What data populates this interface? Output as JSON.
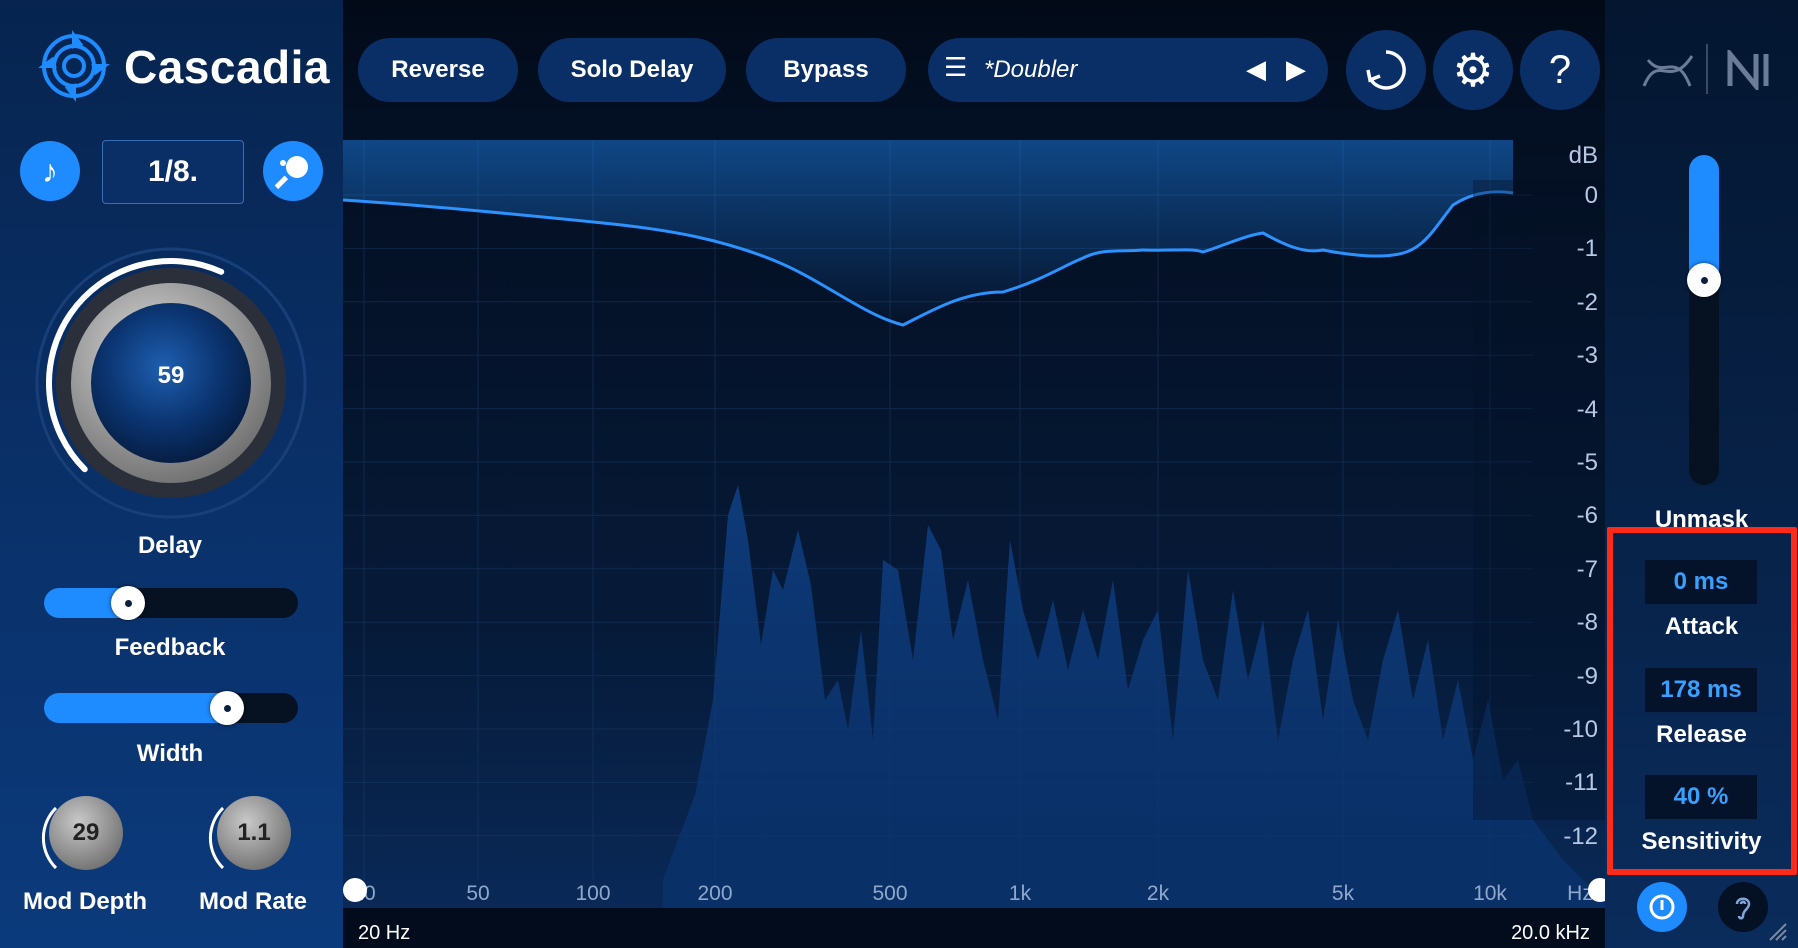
{
  "app": {
    "name": "Cascadia"
  },
  "toolbar": {
    "reverse_label": "Reverse",
    "solo_delay_label": "Solo Delay",
    "bypass_label": "Bypass",
    "preset_name": "*Doubler"
  },
  "delay": {
    "sync_value": "1/8.",
    "knob_value": "59",
    "label": "Delay",
    "arc_level": 0.59
  },
  "feedback": {
    "label": "Feedback",
    "level": 0.33
  },
  "width": {
    "label": "Width",
    "level": 0.72
  },
  "mod_depth": {
    "label": "Mod Depth",
    "value": "29"
  },
  "mod_rate": {
    "label": "Mod Rate",
    "value": "1.1"
  },
  "db_axis": {
    "unit": "dB",
    "ticks": [
      "0",
      "-1",
      "-2",
      "-3",
      "-4",
      "-5",
      "-6",
      "-7",
      "-8",
      "-9",
      "-10",
      "-11",
      "-12"
    ]
  },
  "freq_axis": {
    "ticks": [
      "20",
      "50",
      "100",
      "200",
      "500",
      "1k",
      "2k",
      "5k",
      "10k",
      "Hz"
    ]
  },
  "range": {
    "min_label": "20 Hz",
    "max_label": "20.0 kHz"
  },
  "unmask": {
    "label": "Unmask",
    "level": 0.62
  },
  "attack": {
    "value": "0 ms",
    "label": "Attack"
  },
  "release": {
    "value": "178 ms",
    "label": "Release"
  },
  "sensitivity": {
    "value": "40 %",
    "label": "Sensitivity"
  },
  "colors": {
    "accent": "#1e8bff",
    "highlight": "#ff2a1a",
    "value_text": "#3aa0ff"
  }
}
